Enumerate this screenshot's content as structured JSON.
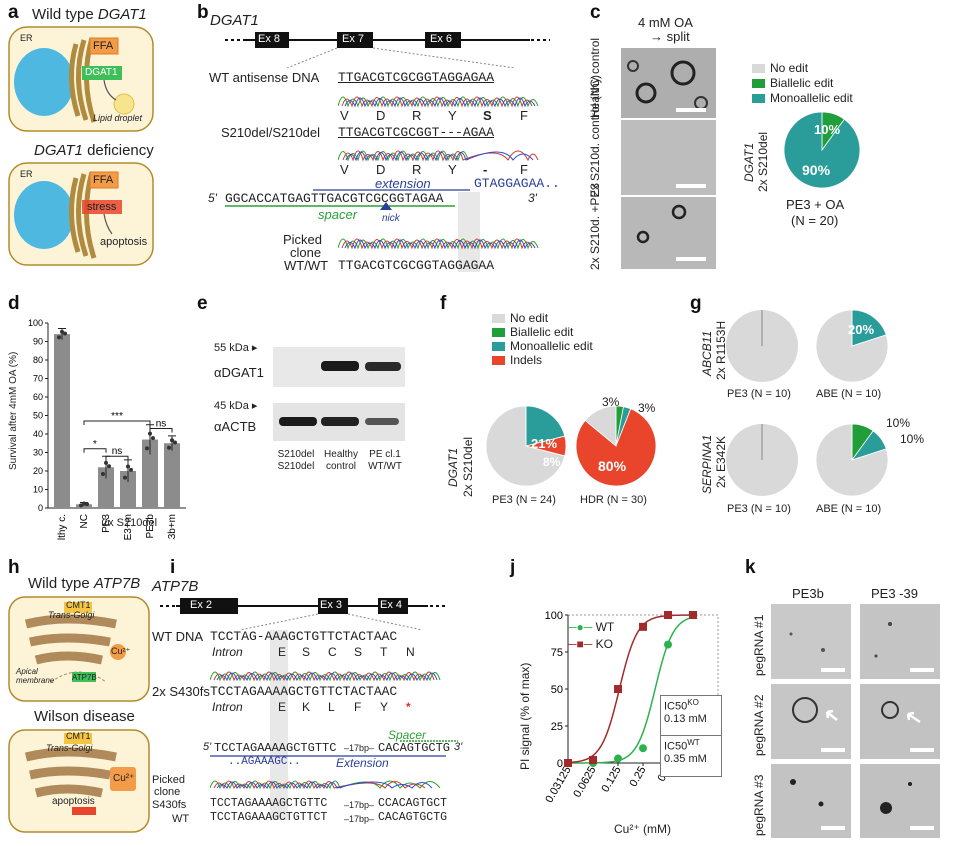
{
  "panels": {
    "a": {
      "label": "a",
      "wt_title": "Wild type ",
      "wt_gene": "DGAT1",
      "def_gene": "DGAT1",
      "def_title": " deficiency",
      "er": "ER",
      "ffa": "FFA",
      "dgat1": "DGAT1",
      "lipid": "Lipid droplet",
      "stress": "stress",
      "apoptosis": "apoptosis"
    },
    "b": {
      "label": "b",
      "gene": "DGAT1",
      "exons": [
        "Ex 8",
        "Ex 7",
        "Ex 6"
      ],
      "wt_label": "WT antisense DNA",
      "wt_seq": "TTGACGTCGCGGTAGGAGAA",
      "wt_aa": [
        "V",
        "D",
        "R",
        "Y",
        "S",
        "F"
      ],
      "mut_label": "S210del/S210del",
      "mut_seq": "TTGACGTCGCGGT---AGAA",
      "mut_aa": [
        "V",
        "D",
        "R",
        "Y",
        "-",
        "F"
      ],
      "five": "5'",
      "three": "3'",
      "guide_seq": "GGCACCATGAGTTGACGTCGCGGTAGAA",
      "ext_seq": "GTAGGAGAA..",
      "extension": "extension",
      "spacer": "spacer",
      "nick": "nick",
      "picked": "Picked",
      "clone": "clone",
      "wtwt": "WT/WT",
      "picked_seq": "TTGACGTCGCGGTAGGAGAA"
    },
    "c": {
      "label": "c",
      "cond": "4 mM OA",
      "split": "→ split",
      "rows": [
        "Healthy control",
        "2x S210d. control (NC)",
        "2x S210d. +PE3"
      ],
      "gene": "DGAT1",
      "geno": "2x S210del",
      "legend": [
        "No edit",
        "Biallelic edit",
        "Monoallelic edit"
      ],
      "caption": "PE3 + OA",
      "n": "(N = 20)",
      "pct_bi": "10%",
      "pct_mono": "90%"
    },
    "d": {
      "label": "d",
      "ylabel": "Survival after 4mM OA (%)",
      "xcats": [
        "Healthy c.",
        "NC",
        "PE3",
        "PE3+m",
        "PE3b",
        "PE3b+m"
      ],
      "group": "2x S210del",
      "yticks": [
        "0",
        "10",
        "20",
        "30",
        "40",
        "50",
        "60",
        "70",
        "80",
        "90",
        "100"
      ],
      "sig": [
        "*",
        "ns",
        "***",
        "ns"
      ]
    },
    "e": {
      "label": "e",
      "kda55": "55 kDa",
      "kda45": "45 kDa",
      "ab1": "αDGAT1",
      "ab2": "αACTB",
      "lanes": [
        "S210del S210del",
        "Healthy control",
        "PE cl.1 WT/WT"
      ]
    },
    "f": {
      "label": "f",
      "legend": [
        "No edit",
        "Biallelic edit",
        "Monoallelic edit",
        "Indels"
      ],
      "gene": "DGAT1",
      "geno": "2x S210del",
      "pe3_caption": "PE3 (N = 24)",
      "hdr_caption": "HDR (N = 30)",
      "pe3_mono": "21%",
      "pe3_indel": "8%",
      "hdr_indel": "80%",
      "hdr_a": "3%",
      "hdr_b": "3%"
    },
    "g": {
      "label": "g",
      "gene1": "ABCB11",
      "geno1": "2x R1153H",
      "gene2": "SERPINA1",
      "geno2": "2x E342K",
      "cap_pe3": "PE3 (N = 10)",
      "cap_abe": "ABE (N = 10)",
      "abe1": "20%",
      "abe2a": "10%",
      "abe2b": "10%"
    },
    "h": {
      "label": "h",
      "wt_title": "Wild type ",
      "wt_gene": "ATP7B",
      "cmt1": "CMT1",
      "tgolgi": "Trans-Golgi",
      "cu": "Cu²⁺",
      "apical": "Apical membrane",
      "atp7b": "ATP7B",
      "wilson": "Wilson disease",
      "apoptosis": "apoptosis"
    },
    "i": {
      "label": "i",
      "gene": "ATP7B",
      "exons": [
        "Ex 2",
        "Ex 3",
        "Ex 4"
      ],
      "wt_label": "WT DNA",
      "wt_seq": "TCCTAG-AAAGCTGTTCTACTAAC",
      "wt_aa": [
        "Intron",
        "E",
        "S",
        "C",
        "S",
        "T",
        "N"
      ],
      "mut_label": "2x S430fs",
      "mut_seq": "TCCTAGAAAAGCTGTTCTACTAAC",
      "mut_aa": [
        "Intron",
        "E",
        "K",
        "L",
        "F",
        "Y",
        "*"
      ],
      "five": "5'",
      "three": "3'",
      "guide_seq": "TCCTAGAAAAGCTGTTC",
      "bp17": "–17bp–",
      "guide_seq2": "CACAGTGCTG",
      "ext_seq": "..AGAAAGC..",
      "extension": "Extension",
      "spacer": "Spacer",
      "picked": "Picked",
      "clone": "clone",
      "s430": "S430fs",
      "wt": "WT",
      "row1": "TCCTAGAAAAGCTGTTC",
      "row1b": "CCACAGTGCT",
      "row2": "TCCTAGAAAGCTGTTCT",
      "row2b": "CACAGTGCTG"
    },
    "j": {
      "label": "j",
      "ylabel": "PI signal (% of max)",
      "xlabel": "Cu²⁺ (mM)",
      "legend": [
        "WT",
        "KO"
      ],
      "ic_ko_label": "IC50",
      "ic_ko_sup": "KO",
      "ic_ko_val": "0.13 mM",
      "ic_wt_label": "IC50",
      "ic_wt_sup": "WT",
      "ic_wt_val": "0.35 mM",
      "xticks": [
        "0.03125",
        "0.0625",
        "0.125",
        "0.25",
        "0.5",
        "1",
        "2"
      ],
      "yticks": [
        "0",
        "25",
        "50",
        "75",
        "100"
      ]
    },
    "k": {
      "label": "k",
      "cols": [
        "PE3b",
        "PE3 -39"
      ],
      "rows": [
        "pegRNA #1",
        "pegRNA #2",
        "pegRNA #3"
      ]
    }
  },
  "chart_data": [
    {
      "type": "bar",
      "panel": "d",
      "categories": [
        "Healthy c.",
        "NC",
        "PE3",
        "PE3+m",
        "PE3b",
        "PE3b+m"
      ],
      "values": [
        94,
        2,
        22,
        20,
        37,
        35
      ],
      "errors": [
        3,
        1,
        6,
        6,
        8,
        4
      ],
      "ylabel": "Survival after 4mM OA (%)",
      "ylim": [
        0,
        100
      ]
    },
    {
      "type": "pie",
      "panel": "c",
      "labels": [
        "No edit",
        "Biallelic edit",
        "Monoallelic edit"
      ],
      "values": [
        0,
        10,
        90
      ],
      "colors": [
        "#d9d9d9",
        "#1f9e3a",
        "#2a9d9a"
      ]
    },
    {
      "type": "pie",
      "panel": "f-PE3",
      "labels": [
        "No edit",
        "Biallelic edit",
        "Monoallelic edit",
        "Indels"
      ],
      "values": [
        71,
        0,
        21,
        8
      ],
      "colors": [
        "#d9d9d9",
        "#1f9e3a",
        "#2a9d9a",
        "#e8452c"
      ]
    },
    {
      "type": "pie",
      "panel": "f-HDR",
      "labels": [
        "No edit",
        "Biallelic edit",
        "Monoallelic edit",
        "Indels"
      ],
      "values": [
        14,
        3,
        3,
        80
      ],
      "colors": [
        "#d9d9d9",
        "#1f9e3a",
        "#2a9d9a",
        "#e8452c"
      ]
    },
    {
      "type": "pie",
      "panel": "g-ABCB11-PE3",
      "labels": [
        "No edit"
      ],
      "values": [
        100
      ],
      "colors": [
        "#d9d9d9"
      ]
    },
    {
      "type": "pie",
      "panel": "g-ABCB11-ABE",
      "labels": [
        "No edit",
        "Monoallelic edit"
      ],
      "values": [
        80,
        20
      ],
      "colors": [
        "#d9d9d9",
        "#2a9d9a"
      ]
    },
    {
      "type": "pie",
      "panel": "g-SERPINA1-PE3",
      "labels": [
        "No edit"
      ],
      "values": [
        100
      ],
      "colors": [
        "#d9d9d9"
      ]
    },
    {
      "type": "pie",
      "panel": "g-SERPINA1-ABE",
      "labels": [
        "No edit",
        "Biallelic edit",
        "Monoallelic edit"
      ],
      "values": [
        80,
        10,
        10
      ],
      "colors": [
        "#d9d9d9",
        "#1f9e3a",
        "#2a9d9a"
      ]
    },
    {
      "type": "line",
      "panel": "j",
      "x": [
        0.03125,
        0.0625,
        0.125,
        0.25,
        0.5,
        1
      ],
      "series": [
        {
          "name": "WT",
          "values": [
            0,
            0,
            3,
            10,
            80,
            100
          ],
          "color": "#2bb24c"
        },
        {
          "name": "KO",
          "values": [
            0,
            2,
            50,
            92,
            100,
            100
          ],
          "color": "#a12b2b"
        }
      ],
      "xscale": "log2",
      "ylim": [
        0,
        100
      ],
      "ylabel": "PI signal (% of max)",
      "xlabel": "Cu²⁺ (mM)"
    }
  ]
}
